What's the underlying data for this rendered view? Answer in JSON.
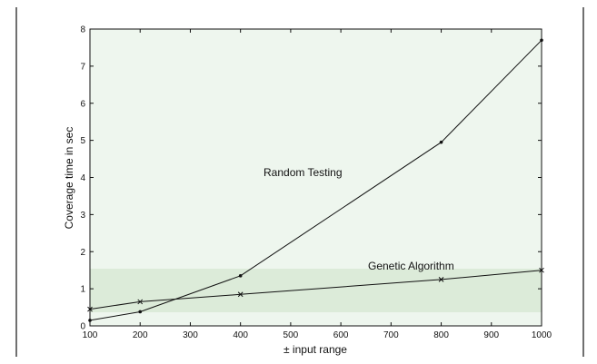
{
  "chart_data": {
    "type": "line",
    "title": "",
    "xlabel": "± input range",
    "ylabel": "Coverage time in sec",
    "xlim": [
      100,
      1000
    ],
    "ylim": [
      0,
      8
    ],
    "xticks": [
      "100",
      "200",
      "300",
      "400",
      "500",
      "600",
      "700",
      "800",
      "900",
      "1000"
    ],
    "yticks": [
      "0",
      "1",
      "2",
      "3",
      "4",
      "5",
      "6",
      "7",
      "8"
    ],
    "grid": false,
    "series": [
      {
        "name": "Random Testing",
        "x": [
          100,
          200,
          400,
          800,
          1000
        ],
        "y": [
          0.15,
          0.38,
          1.35,
          4.95,
          7.7
        ],
        "marker": "dot"
      },
      {
        "name": "Genetic Algorithm",
        "x": [
          100,
          200,
          400,
          800,
          1000
        ],
        "y": [
          0.45,
          0.65,
          0.85,
          1.25,
          1.5
        ],
        "marker": "x"
      }
    ]
  },
  "colors": {
    "background": "#ffffff",
    "plot_background": "#eef6ee",
    "band": "#dcebd9",
    "ink": "#111111"
  }
}
